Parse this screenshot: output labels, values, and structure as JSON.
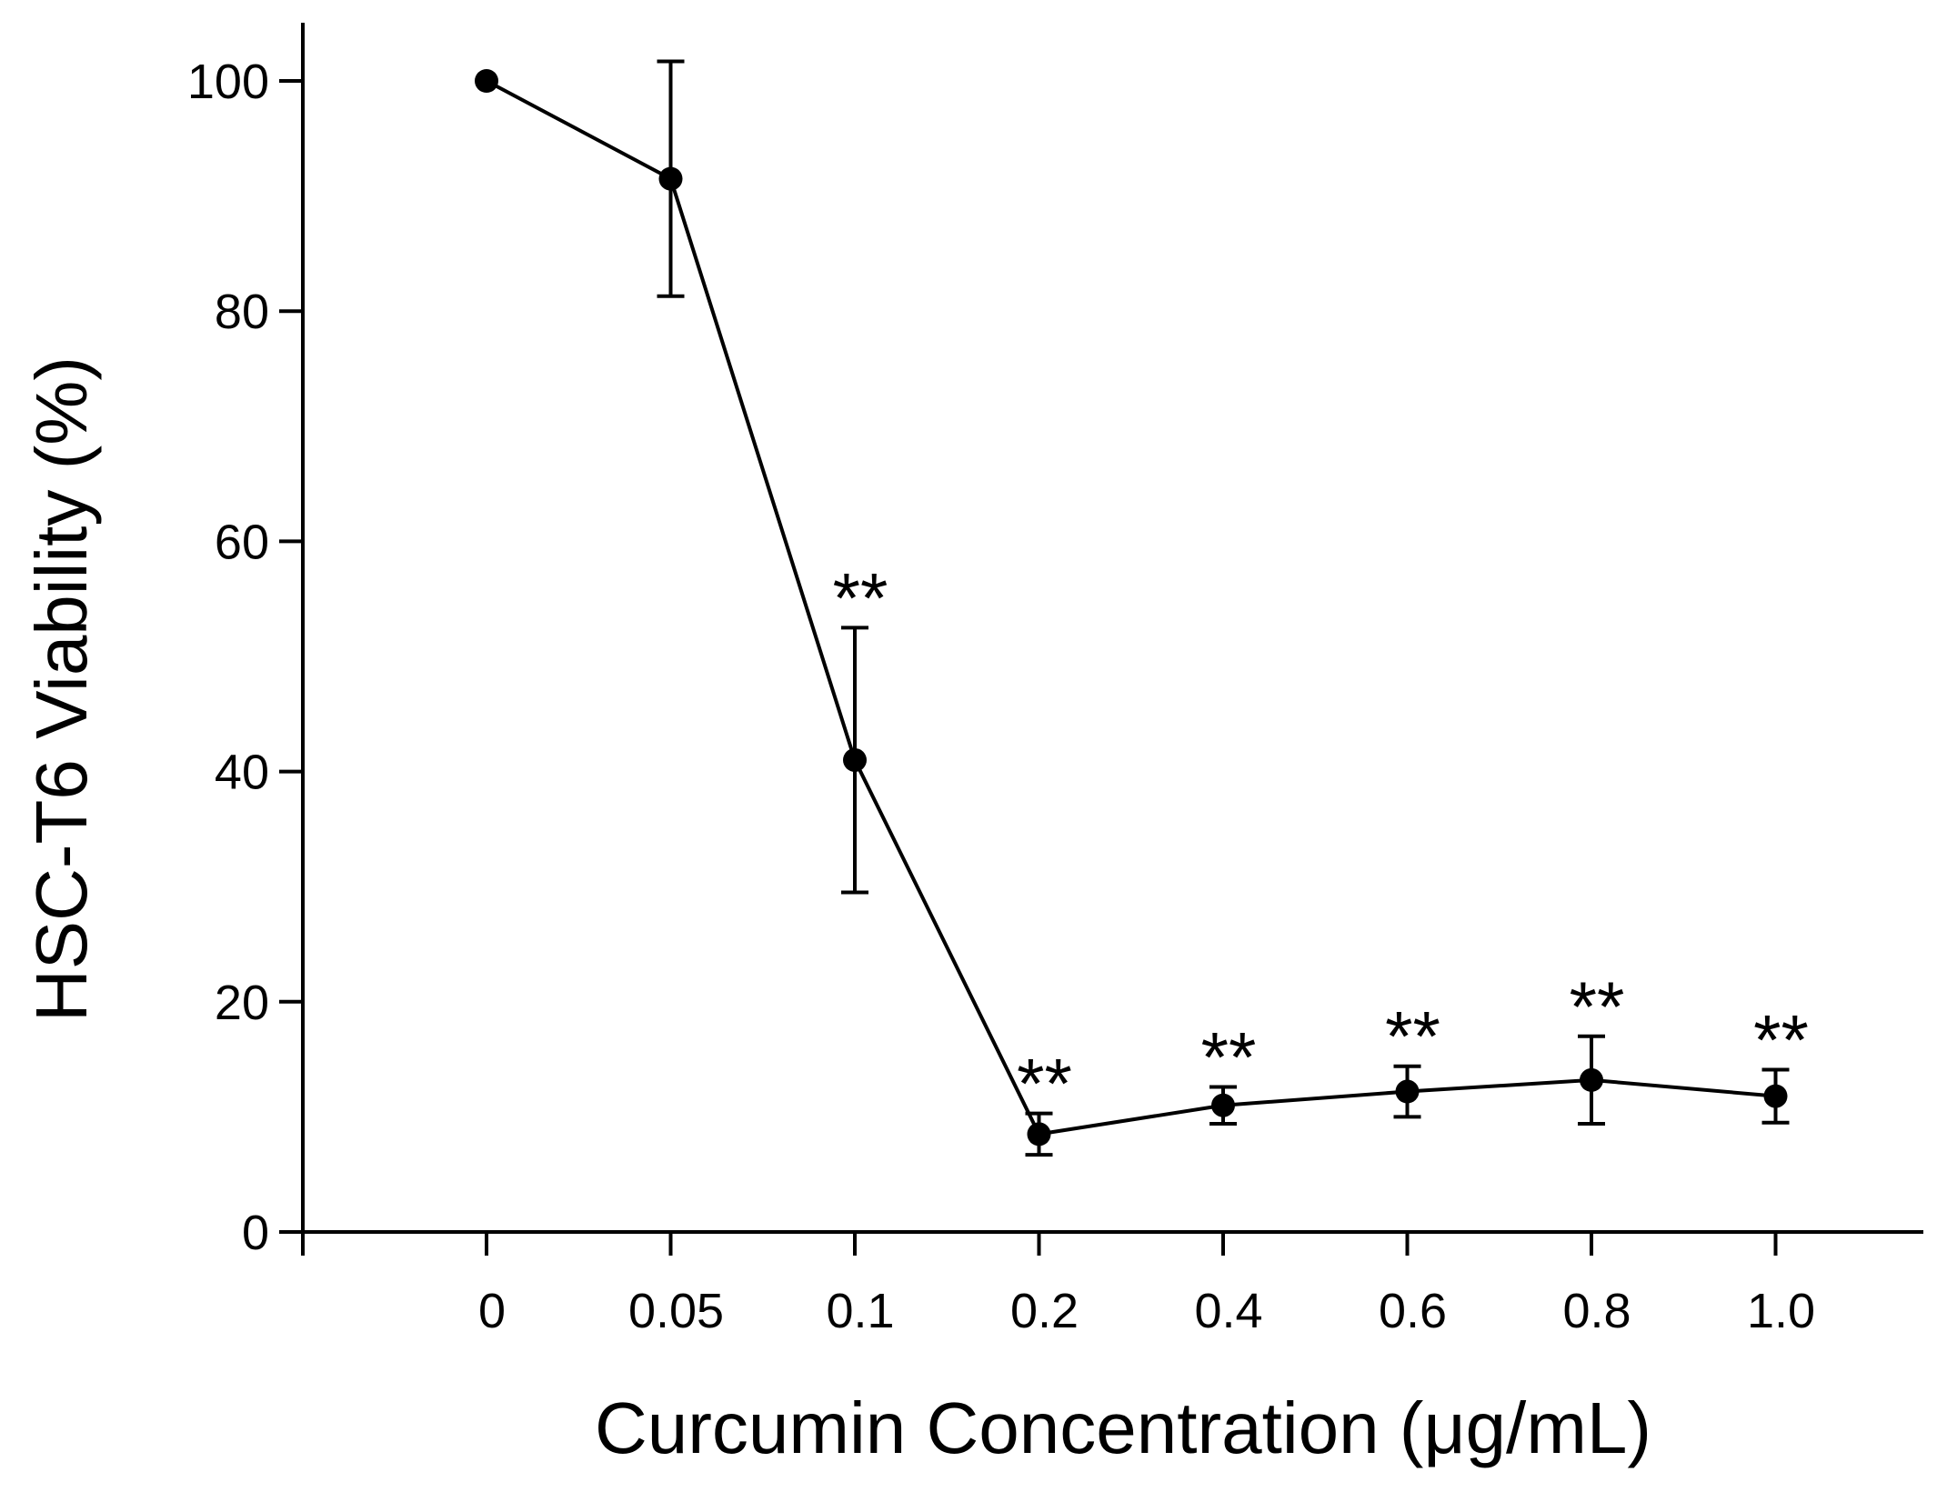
{
  "chart_data": {
    "type": "line",
    "title": "",
    "xlabel": "Curcumin Concentration (μg/mL)",
    "ylabel": "HSC-T6 Viability (%)",
    "ylim": [
      0,
      100
    ],
    "yticks": [
      "0",
      "20",
      "40",
      "60",
      "80",
      "100"
    ],
    "categories": [
      "0",
      "0.05",
      "0.1",
      "0.2",
      "0.4",
      "0.6",
      "0.8",
      "1.0"
    ],
    "series": [
      {
        "name": "HSC-T6 Viability",
        "values": [
          100,
          91.5,
          41,
          8.5,
          11,
          12.2,
          13.2,
          11.8
        ],
        "error": [
          0,
          10.2,
          11.5,
          1.8,
          1.6,
          2.2,
          3.8,
          2.3
        ],
        "significance": [
          "",
          "",
          "**",
          "**",
          "**",
          "**",
          "**",
          "**"
        ]
      }
    ],
    "colors": {
      "line": "#000000",
      "marker": "#000000"
    }
  }
}
